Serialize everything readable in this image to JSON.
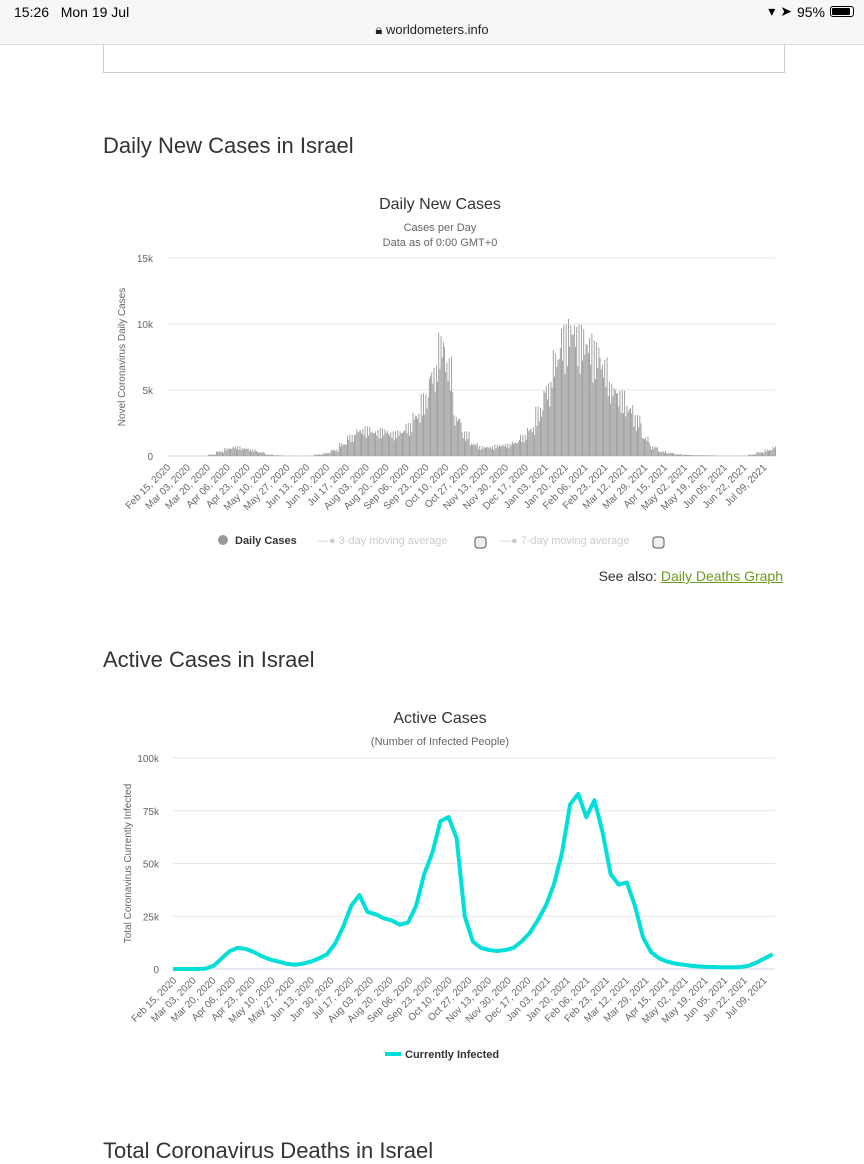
{
  "status": {
    "time": "15:26",
    "date": "Mon 19 Jul",
    "battery": "95%",
    "url": "worldometers.info"
  },
  "sections": {
    "daily_heading": "Daily New Cases in Israel",
    "active_heading": "Active Cases in Israel",
    "deaths_heading": "Total Coronavirus Deaths in Israel"
  },
  "see_also": {
    "prefix": "See also:",
    "link": "Daily Deaths Graph"
  },
  "chart_data": [
    {
      "type": "bar",
      "title": "Daily New Cases",
      "subtitle1": "Cases per Day",
      "subtitle2": "Data as of 0:00 GMT+0",
      "ylabel": "Novel Coronavirus Daily Cases",
      "ylim": [
        0,
        15000
      ],
      "yticks": [
        "0",
        "5k",
        "10k",
        "15k"
      ],
      "color": "#999999",
      "legend": [
        "Daily Cases",
        "3-day moving average",
        "7-day moving average"
      ],
      "x_start": "Feb 15, 2020",
      "x_step_days": 7,
      "xticks": [
        "Feb 15, 2020",
        "Mar 03, 2020",
        "Mar 20, 2020",
        "Apr 06, 2020",
        "Apr 23, 2020",
        "May 10, 2020",
        "May 27, 2020",
        "Jun 13, 2020",
        "Jun 30, 2020",
        "Jul 17, 2020",
        "Aug 03, 2020",
        "Aug 20, 2020",
        "Sep 06, 2020",
        "Sep 23, 2020",
        "Oct 10, 2020",
        "Oct 27, 2020",
        "Nov 13, 2020",
        "Nov 30, 2020",
        "Dec 17, 2020",
        "Jan 03, 2021",
        "Jan 20, 2021",
        "Feb 06, 2021",
        "Feb 23, 2021",
        "Mar 12, 2021",
        "Mar 29, 2021",
        "Apr 15, 2021",
        "May 02, 2021",
        "May 19, 2021",
        "Jun 05, 2021",
        "Jun 22, 2021",
        "Jul 09, 2021"
      ],
      "values": [
        0,
        0,
        0,
        0,
        0,
        100,
        300,
        500,
        600,
        500,
        400,
        250,
        100,
        50,
        20,
        10,
        10,
        15,
        100,
        200,
        400,
        800,
        1300,
        1700,
        1800,
        1600,
        1700,
        1500,
        1600,
        2000,
        2700,
        3800,
        5500,
        7500,
        6000,
        2500,
        1500,
        800,
        600,
        600,
        700,
        750,
        900,
        1300,
        1800,
        3000,
        4500,
        6500,
        8000,
        8500,
        8000,
        7500,
        7000,
        6000,
        4500,
        4000,
        3200,
        2500,
        1200,
        600,
        300,
        200,
        120,
        80,
        60,
        50,
        40,
        20,
        15,
        15,
        20,
        100,
        250,
        400,
        600,
        900
      ]
    },
    {
      "type": "line",
      "title": "Active Cases",
      "subtitle1": "(Number of Infected People)",
      "ylabel": "Total Coronavirus Currently Infected",
      "ylim": [
        0,
        100000
      ],
      "yticks": [
        "0",
        "25k",
        "50k",
        "75k",
        "100k"
      ],
      "color": "#00e0d8",
      "legend": [
        "Currently Infected"
      ],
      "x_start": "Feb 15, 2020",
      "x_step_days": 7,
      "values": [
        0,
        0,
        0,
        0,
        200,
        1500,
        5000,
        8500,
        10000,
        9500,
        8000,
        6000,
        4500,
        3500,
        2500,
        2000,
        2500,
        3500,
        5000,
        7000,
        12000,
        20000,
        30000,
        35000,
        27000,
        26000,
        24000,
        23000,
        21000,
        22000,
        30000,
        45000,
        55000,
        70000,
        72000,
        62000,
        25000,
        13000,
        10000,
        9000,
        8500,
        9000,
        10000,
        13000,
        17000,
        23000,
        30000,
        40000,
        55000,
        78000,
        83000,
        72000,
        80000,
        65000,
        45000,
        40000,
        41000,
        30000,
        15000,
        8000,
        5000,
        3500,
        2500,
        2000,
        1500,
        1200,
        1000,
        900,
        800,
        800,
        900,
        1500,
        3000,
        5000,
        7000
      ]
    }
  ]
}
